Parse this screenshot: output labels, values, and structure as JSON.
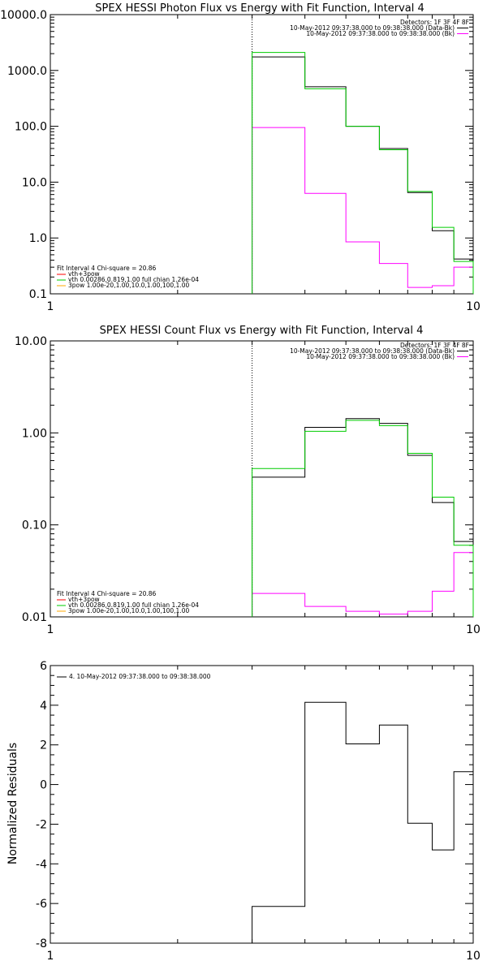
{
  "chart_data": [
    {
      "type": "line",
      "title": "SPEX HESSI Photon Flux vs Energy with Fit Function, Interval 4",
      "xlabel": "",
      "ylabel": "",
      "xscale": "log",
      "yscale": "log",
      "xlim": [
        1,
        10
      ],
      "ylim": [
        0.1,
        10000
      ],
      "x_tick_labels": [
        "1",
        "10"
      ],
      "x_tick_values": [
        1,
        10
      ],
      "y_tick_labels": [
        "0.1",
        "1.0",
        "10.0",
        "100.0",
        "1000.0",
        "10000.0"
      ],
      "y_tick_values": [
        0.1,
        1,
        10,
        100,
        1000,
        10000
      ],
      "vline_x": 3,
      "bin_edges": [
        3,
        4,
        5,
        6,
        7,
        8,
        9,
        10
      ],
      "series": [
        {
          "name": "10-May-2012 09:37:38.000 to 09:38:38.000 (Data-Bk)",
          "color": "#000000",
          "values": [
            1750,
            510,
            100,
            40,
            6.5,
            1.35,
            0.42
          ]
        },
        {
          "name": "10-May-2012 09:37:38.000 to 09:38:38.000 (Bk)",
          "color": "#ff00ff",
          "values": [
            95,
            6.3,
            0.85,
            0.35,
            0.13,
            0.14,
            0.3
          ]
        },
        {
          "name": "vth 0.00286,0.819,1.00 full chian 1.26e-04",
          "color": "#00cc00",
          "values": [
            2100,
            470,
            100,
            38,
            6.8,
            1.55,
            0.38
          ]
        }
      ],
      "legend_right": {
        "position": "top-right",
        "header": "Detectors: 1F 3F 4F 8F",
        "items": [
          {
            "text": "10-May-2012 09:37:38.000 to 09:38:38.000 (Data-Bk)",
            "color": "#000000"
          },
          {
            "text": "10-May-2012 09:37:38.000 to 09:38:38.000 (Bk)",
            "color": "#ff00ff"
          }
        ]
      },
      "legend_left": {
        "position": "bottom-left",
        "header": "Fit Interval 4 Chi-square = 20.86",
        "items": [
          {
            "text": "vth+3pow",
            "color": "#ff0000"
          },
          {
            "text": "vth 0.00286,0.819,1.00 full chian 1.26e-04",
            "color": "#00cc00"
          },
          {
            "text": "3pow 1.00e-20,1.00,10.0,1.00,100,1.00",
            "color": "#ffaa00"
          }
        ]
      }
    },
    {
      "type": "line",
      "title": "SPEX HESSI Count Flux vs Energy with Fit Function, Interval 4",
      "xlabel": "",
      "ylabel": "",
      "xscale": "log",
      "yscale": "log",
      "xlim": [
        1,
        10
      ],
      "ylim": [
        0.01,
        10
      ],
      "x_tick_labels": [
        "1",
        "10"
      ],
      "x_tick_values": [
        1,
        10
      ],
      "y_tick_labels": [
        "0.01",
        "0.10",
        "1.00",
        "10.00"
      ],
      "y_tick_values": [
        0.01,
        0.1,
        1,
        10
      ],
      "vline_x": 3,
      "bin_edges": [
        3,
        4,
        5,
        6,
        7,
        8,
        9,
        10
      ],
      "series": [
        {
          "name": "10-May-2012 09:37:38.000 to 09:38:38.000 (Data-Bk)",
          "color": "#000000",
          "values": [
            0.33,
            1.15,
            1.43,
            1.27,
            0.57,
            0.175,
            0.066
          ]
        },
        {
          "name": "10-May-2012 09:37:38.000 to 09:38:38.000 (Bk)",
          "color": "#ff00ff",
          "values": [
            0.018,
            0.013,
            0.0115,
            0.0107,
            0.0115,
            0.019,
            0.05
          ]
        },
        {
          "name": "vth 0.00286,0.819,1.00 full chian 1.26e-04",
          "color": "#00cc00",
          "values": [
            0.41,
            1.04,
            1.37,
            1.2,
            0.6,
            0.2,
            0.06
          ]
        }
      ],
      "legend_right": {
        "position": "top-right",
        "header": "Detectors: 1F 3F 4F 8F",
        "items": [
          {
            "text": "10-May-2012 09:37:38.000 to 09:38:38.000 (Data-Bk)",
            "color": "#000000"
          },
          {
            "text": "10-May-2012 09:37:38.000 to 09:38:38.000 (Bk)",
            "color": "#ff00ff"
          }
        ]
      },
      "legend_left": {
        "position": "bottom-left",
        "header": "Fit Interval 4 Chi-square = 20.86",
        "items": [
          {
            "text": "vth+3pow",
            "color": "#ff0000"
          },
          {
            "text": "vth 0.00286,0.819,1.00 full chian 1.26e-04",
            "color": "#00cc00"
          },
          {
            "text": "3pow 1.00e-20,1.00,10.0,1.00,100,1.00",
            "color": "#ffaa00"
          }
        ]
      }
    },
    {
      "type": "line",
      "title": "",
      "xlabel": "",
      "ylabel": "Normalized Residuals",
      "xscale": "log",
      "yscale": "linear",
      "xlim": [
        1,
        10
      ],
      "ylim": [
        -8,
        6
      ],
      "x_tick_labels": [
        "1",
        "10"
      ],
      "x_tick_values": [
        1,
        10
      ],
      "y_tick_labels": [
        "-8",
        "-6",
        "-4",
        "-2",
        "0",
        "2",
        "4",
        "6"
      ],
      "y_tick_values": [
        -8,
        -6,
        -4,
        -2,
        0,
        2,
        4,
        6
      ],
      "bin_edges": [
        3,
        4,
        5,
        6,
        7,
        8,
        9,
        10
      ],
      "series": [
        {
          "name": "4. 10-May-2012 09:37:38.000 to 09:38:38.000",
          "color": "#000000",
          "values": [
            -6.15,
            4.15,
            2.05,
            3.0,
            -1.95,
            -3.3,
            0.65
          ]
        }
      ],
      "legend": {
        "position": "top-left",
        "items": [
          {
            "text": "4. 10-May-2012 09:37:38.000 to 09:38:38.000",
            "color": "#000000"
          }
        ]
      }
    }
  ]
}
